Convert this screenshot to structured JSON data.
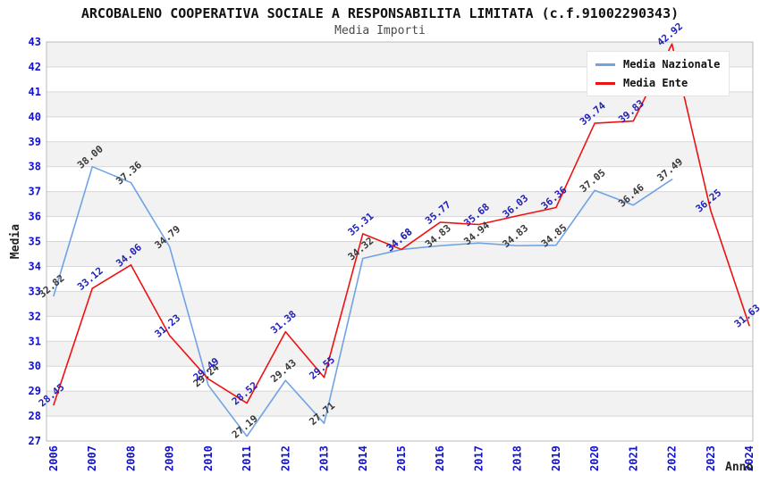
{
  "chart_data": {
    "type": "line",
    "title": "ARCOBALENO COOPERATIVA SOCIALE A RESPONSABILITA LIMITATA (c.f.91002290343)",
    "subtitle": "Media Importi",
    "xlabel": "Anno",
    "ylabel": "Media",
    "ylim": [
      27,
      43
    ],
    "grid": "horizontal-bands",
    "legend_position": "top-right",
    "band_color": "#f2f2f2",
    "gridline_color": "#d7d7d7",
    "frame_color": "#b9b9b9",
    "tick_label_color": "#1212cc",
    "x": [
      2006,
      2007,
      2008,
      2009,
      2010,
      2011,
      2012,
      2013,
      2014,
      2015,
      2016,
      2017,
      2018,
      2019,
      2020,
      2021,
      2022,
      2023,
      2024
    ],
    "series": [
      {
        "name": "Media Nazionale",
        "color": "#6fa3e3",
        "label_color": "#3a3a3a",
        "values": [
          32.82,
          38.0,
          37.36,
          34.79,
          29.24,
          27.19,
          29.43,
          27.71,
          34.32,
          34.68,
          34.83,
          34.94,
          34.83,
          34.85,
          37.05,
          36.46,
          37.49,
          null,
          null
        ]
      },
      {
        "name": "Media Ente",
        "color": "#ee1111",
        "label_color": "#2222b8",
        "values": [
          28.45,
          33.12,
          34.06,
          31.23,
          29.49,
          28.52,
          31.38,
          29.55,
          35.31,
          34.68,
          35.77,
          35.68,
          36.03,
          36.36,
          39.74,
          39.83,
          42.92,
          36.25,
          31.63
        ]
      }
    ]
  }
}
